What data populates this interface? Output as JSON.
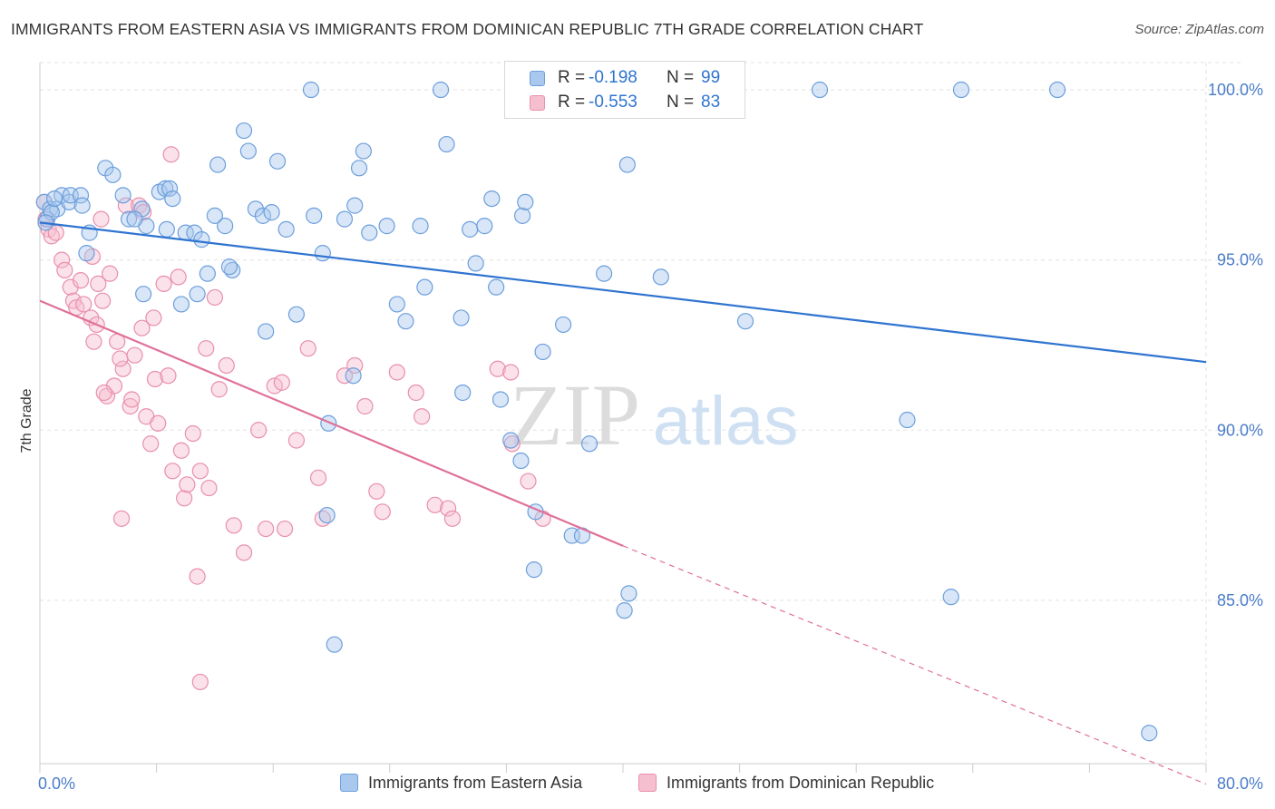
{
  "title": "IMMIGRANTS FROM EASTERN ASIA VS IMMIGRANTS FROM DOMINICAN REPUBLIC 7TH GRADE CORRELATION CHART",
  "source": "Source: ZipAtlas.com",
  "watermark": {
    "zip": "ZIP",
    "atlas": "atlas"
  },
  "legend": {
    "r_label": "R =",
    "n_label": "N =",
    "rows": [
      {
        "r": "-0.198",
        "n": "99"
      },
      {
        "r": "-0.553",
        "n": "83"
      }
    ]
  },
  "colors": {
    "blue_fill": "#a9c8ee",
    "blue_stroke": "#6c9fdc",
    "blue_line": "#2f74d0",
    "pink_fill": "#f6bfd0",
    "pink_stroke": "#e88fab",
    "pink_line": "#e0709a",
    "tick_text": "#4a7cc9",
    "grid": "#e2e2e2"
  },
  "chart_data": {
    "type": "scatter",
    "title": "IMMIGRANTS FROM EASTERN ASIA VS IMMIGRANTS FROM DOMINICAN REPUBLIC 7TH GRADE CORRELATION CHART",
    "xlabel": "",
    "ylabel": "7th Grade",
    "xlim": [
      0,
      80
    ],
    "ylim": [
      80.2,
      100.8
    ],
    "x_tick_labels": [
      "0.0%",
      "80.0%"
    ],
    "y_ticks": [
      85,
      90,
      95,
      100
    ],
    "y_tick_labels": [
      "85.0%",
      "90.0%",
      "95.0%",
      "100.0%"
    ],
    "grid": true,
    "legend_position": "top-center",
    "series": [
      {
        "name": "Immigrants from Eastern Asia",
        "r": -0.198,
        "n": 99,
        "trend": {
          "x0": 0,
          "y0": 96.1,
          "x1": 80,
          "y1": 92.0
        },
        "points": [
          [
            0.3,
            96.7
          ],
          [
            0.5,
            96.2
          ],
          [
            0.7,
            96.5
          ],
          [
            1.2,
            96.5
          ],
          [
            1.5,
            96.9
          ],
          [
            2.0,
            96.7
          ],
          [
            2.1,
            96.9
          ],
          [
            2.8,
            96.9
          ],
          [
            2.9,
            96.6
          ],
          [
            3.2,
            95.2
          ],
          [
            3.4,
            95.8
          ],
          [
            4.5,
            97.7
          ],
          [
            5.0,
            97.5
          ],
          [
            5.7,
            96.9
          ],
          [
            6.1,
            96.2
          ],
          [
            7.0,
            96.5
          ],
          [
            7.3,
            96.0
          ],
          [
            7.1,
            94.0
          ],
          [
            8.2,
            97.0
          ],
          [
            8.6,
            97.1
          ],
          [
            8.9,
            97.1
          ],
          [
            9.1,
            96.8
          ],
          [
            10.0,
            95.8
          ],
          [
            10.6,
            95.8
          ],
          [
            11.1,
            95.6
          ],
          [
            12.2,
            97.8
          ],
          [
            12.7,
            96.0
          ],
          [
            13.2,
            94.7
          ],
          [
            14.0,
            98.8
          ],
          [
            14.3,
            98.2
          ],
          [
            14.8,
            96.5
          ],
          [
            15.3,
            96.3
          ],
          [
            15.9,
            96.4
          ],
          [
            16.3,
            97.9
          ],
          [
            16.9,
            95.9
          ],
          [
            17.6,
            93.4
          ],
          [
            18.8,
            96.3
          ],
          [
            19.4,
            95.2
          ],
          [
            20.9,
            96.2
          ],
          [
            21.6,
            96.6
          ],
          [
            21.9,
            97.7
          ],
          [
            22.2,
            98.2
          ],
          [
            22.6,
            95.8
          ],
          [
            23.8,
            96.0
          ],
          [
            24.5,
            93.7
          ],
          [
            25.1,
            93.2
          ],
          [
            26.1,
            96.0
          ],
          [
            26.4,
            94.2
          ],
          [
            27.9,
            98.4
          ],
          [
            28.9,
            93.3
          ],
          [
            29.5,
            95.9
          ],
          [
            29.9,
            94.9
          ],
          [
            30.5,
            96.0
          ],
          [
            31.0,
            96.8
          ],
          [
            31.3,
            94.2
          ],
          [
            33.1,
            96.3
          ],
          [
            33.3,
            96.7
          ],
          [
            34.5,
            92.3
          ],
          [
            35.9,
            93.1
          ],
          [
            38.7,
            94.6
          ],
          [
            40.3,
            97.8
          ],
          [
            42.6,
            94.5
          ],
          [
            48.4,
            93.2
          ],
          [
            11.5,
            94.6
          ],
          [
            10.8,
            94.0
          ],
          [
            13.0,
            94.8
          ],
          [
            9.7,
            93.7
          ],
          [
            15.5,
            92.9
          ],
          [
            19.8,
            90.2
          ],
          [
            21.5,
            91.6
          ],
          [
            29.0,
            91.1
          ],
          [
            31.6,
            90.9
          ],
          [
            32.3,
            89.7
          ],
          [
            33.0,
            89.1
          ],
          [
            34.0,
            87.6
          ],
          [
            37.7,
            89.6
          ],
          [
            36.5,
            86.9
          ],
          [
            37.2,
            86.9
          ],
          [
            33.9,
            85.9
          ],
          [
            40.4,
            85.2
          ],
          [
            40.1,
            84.7
          ],
          [
            19.7,
            87.5
          ],
          [
            20.2,
            83.7
          ],
          [
            59.5,
            90.3
          ],
          [
            62.5,
            85.1
          ],
          [
            76.1,
            81.1
          ],
          [
            18.6,
            100.0
          ],
          [
            27.5,
            100.0
          ],
          [
            43.1,
            100.0
          ],
          [
            53.5,
            100.0
          ],
          [
            63.2,
            100.0
          ],
          [
            69.8,
            100.0
          ],
          [
            0.8,
            96.4
          ],
          [
            0.4,
            96.1
          ],
          [
            1.0,
            96.8
          ],
          [
            6.5,
            96.2
          ],
          [
            8.7,
            95.9
          ],
          [
            12.0,
            96.3
          ]
        ]
      },
      {
        "name": "Immigrants from Dominican Republic",
        "r": -0.553,
        "n": 83,
        "trend": {
          "x0": 0,
          "y0": 93.8,
          "x1": 40,
          "y1": 86.6,
          "dash_x0": 40,
          "dash_y0": 86.6,
          "dash_x1": 80,
          "dash_y1": 79.6
        },
        "points": [
          [
            0.3,
            96.7
          ],
          [
            0.4,
            96.2
          ],
          [
            0.6,
            95.9
          ],
          [
            0.8,
            95.7
          ],
          [
            1.1,
            95.8
          ],
          [
            1.5,
            95.0
          ],
          [
            1.7,
            94.7
          ],
          [
            2.1,
            94.2
          ],
          [
            2.3,
            93.8
          ],
          [
            2.5,
            93.6
          ],
          [
            2.8,
            94.4
          ],
          [
            3.0,
            93.7
          ],
          [
            3.5,
            93.3
          ],
          [
            3.7,
            92.6
          ],
          [
            3.9,
            93.1
          ],
          [
            4.3,
            93.8
          ],
          [
            4.6,
            91.0
          ],
          [
            4.8,
            94.6
          ],
          [
            5.1,
            91.3
          ],
          [
            5.3,
            92.6
          ],
          [
            5.7,
            91.8
          ],
          [
            5.5,
            92.1
          ],
          [
            6.2,
            90.7
          ],
          [
            6.5,
            92.2
          ],
          [
            7.0,
            93.0
          ],
          [
            7.3,
            90.4
          ],
          [
            7.6,
            89.6
          ],
          [
            7.9,
            91.5
          ],
          [
            8.1,
            90.2
          ],
          [
            8.5,
            94.3
          ],
          [
            8.8,
            91.6
          ],
          [
            9.1,
            88.8
          ],
          [
            9.5,
            94.5
          ],
          [
            9.7,
            89.4
          ],
          [
            9.9,
            88.0
          ],
          [
            10.1,
            88.4
          ],
          [
            10.5,
            89.9
          ],
          [
            11.0,
            88.8
          ],
          [
            11.6,
            88.3
          ],
          [
            11.4,
            92.4
          ],
          [
            12.0,
            93.9
          ],
          [
            12.3,
            91.2
          ],
          [
            12.8,
            91.9
          ],
          [
            13.3,
            87.2
          ],
          [
            14.0,
            86.4
          ],
          [
            15.0,
            90.0
          ],
          [
            15.5,
            87.1
          ],
          [
            16.1,
            91.3
          ],
          [
            16.6,
            91.4
          ],
          [
            16.8,
            87.1
          ],
          [
            17.6,
            89.7
          ],
          [
            18.4,
            92.4
          ],
          [
            19.1,
            88.6
          ],
          [
            19.4,
            87.4
          ],
          [
            20.9,
            91.6
          ],
          [
            21.6,
            91.9
          ],
          [
            22.3,
            90.7
          ],
          [
            23.1,
            88.2
          ],
          [
            23.5,
            87.6
          ],
          [
            24.5,
            91.7
          ],
          [
            25.8,
            91.1
          ],
          [
            26.2,
            90.4
          ],
          [
            27.1,
            87.8
          ],
          [
            28.0,
            87.7
          ],
          [
            28.3,
            87.4
          ],
          [
            31.4,
            91.8
          ],
          [
            32.3,
            91.7
          ],
          [
            32.4,
            89.6
          ],
          [
            33.5,
            88.5
          ],
          [
            34.5,
            87.4
          ],
          [
            5.9,
            96.6
          ],
          [
            6.8,
            96.6
          ],
          [
            7.1,
            96.4
          ],
          [
            9.0,
            98.1
          ],
          [
            4.2,
            96.2
          ],
          [
            3.6,
            95.1
          ],
          [
            4.0,
            94.3
          ],
          [
            7.8,
            93.3
          ],
          [
            6.3,
            90.9
          ],
          [
            4.4,
            91.1
          ],
          [
            5.6,
            87.4
          ],
          [
            10.8,
            85.7
          ],
          [
            11.0,
            82.6
          ]
        ]
      }
    ]
  },
  "bottom_legend": [
    {
      "label": "Immigrants from Eastern Asia"
    },
    {
      "label": "Immigrants from Dominican Republic"
    }
  ]
}
